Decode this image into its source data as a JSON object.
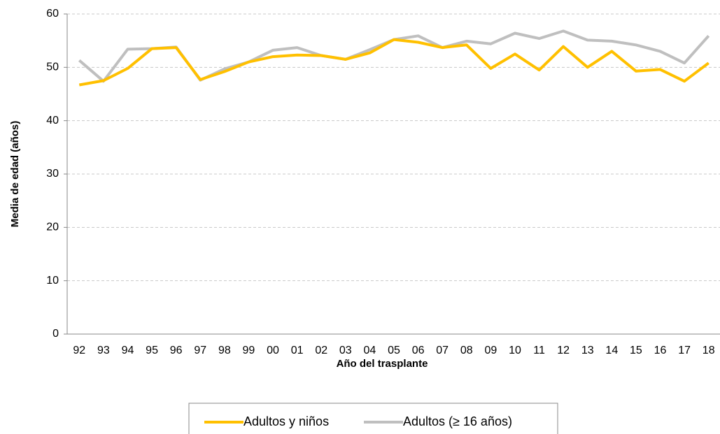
{
  "chart_data": {
    "type": "line",
    "x_label": "Año del trasplante",
    "y_label": "Media de edad (años)",
    "categories": [
      "92",
      "93",
      "94",
      "95",
      "96",
      "97",
      "98",
      "99",
      "00",
      "01",
      "02",
      "03",
      "04",
      "05",
      "06",
      "07",
      "08",
      "09",
      "10",
      "11",
      "12",
      "13",
      "14",
      "15",
      "16",
      "17",
      "18"
    ],
    "series": [
      {
        "name": "Adultos y niños",
        "color": "#ffc000",
        "values": [
          46.7,
          47.5,
          49.8,
          53.5,
          53.7,
          47.7,
          49.2,
          51,
          52,
          52.3,
          52.2,
          51.5,
          52.7,
          55.2,
          54.7,
          53.7,
          54.2,
          49.8,
          52.5,
          49.5,
          53.9,
          50,
          53,
          49.3,
          49.6,
          47.4,
          50.8
        ]
      },
      {
        "name": "Adultos (≥ 16 años)",
        "color": "#bfbfbf",
        "values": [
          51.3,
          47.4,
          53.4,
          53.5,
          53.8,
          47.6,
          49.7,
          51,
          53.2,
          53.7,
          52.2,
          51.5,
          53.3,
          55.2,
          55.9,
          53.7,
          54.9,
          54.4,
          56.4,
          55.4,
          56.8,
          55.1,
          54.9,
          54.2,
          53,
          50.8,
          55.9
        ]
      }
    ],
    "ylim": [
      0,
      60
    ],
    "yticks": [
      0,
      10,
      20,
      30,
      40,
      50,
      60
    ],
    "grid": true
  }
}
